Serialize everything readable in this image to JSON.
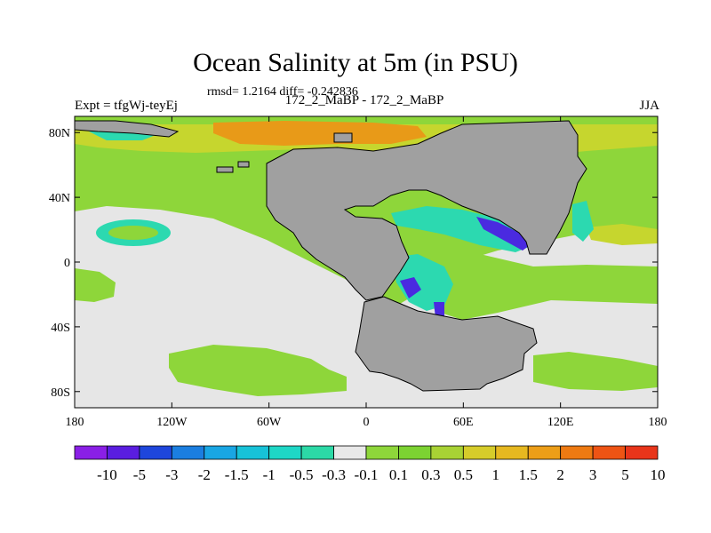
{
  "title": "Ocean Salinity at 5m (in PSU)",
  "stats": "rmsd= 1.2164 diff= -0.242836",
  "experiment": "Expt = tfgWj-teyEj",
  "run": "172_2_MaBP - 172_2_MaBP",
  "season": "JJA",
  "lat_ticks": [
    {
      "value": 80,
      "label": "80N"
    },
    {
      "value": 40,
      "label": "40N"
    },
    {
      "value": 0,
      "label": "0"
    },
    {
      "value": -40,
      "label": "40S"
    },
    {
      "value": -80,
      "label": "80S"
    }
  ],
  "lon_ticks": [
    {
      "value": -180,
      "label": "180"
    },
    {
      "value": -120,
      "label": "120W"
    },
    {
      "value": -60,
      "label": "60W"
    },
    {
      "value": 0,
      "label": "0"
    },
    {
      "value": 60,
      "label": "60E"
    },
    {
      "value": 120,
      "label": "120E"
    },
    {
      "value": 180,
      "label": "180"
    }
  ],
  "colorbar": {
    "colors": [
      "#8a1fe6",
      "#5a1de0",
      "#1e46dc",
      "#1b7ee0",
      "#19a6e4",
      "#17c2d8",
      "#1ed7c6",
      "#2cd9a6",
      "#e8e8e8",
      "#8ed63a",
      "#7cd232",
      "#a8d234",
      "#d6cc2a",
      "#e6b820",
      "#ec9e18",
      "#ee7a12",
      "#ee5414",
      "#e8351a"
    ],
    "labels": [
      "-10",
      "-5",
      "-3",
      "-2",
      "-1.5",
      "-1",
      "-0.5",
      "-0.3",
      "-0.1",
      "0.1",
      "0.3",
      "0.5",
      "1",
      "1.5",
      "2",
      "3",
      "5",
      "10"
    ]
  },
  "map_colors": {
    "land": "#a0a0a0",
    "neutral": "#e6e6e6",
    "positive_low": "#8ed63a",
    "positive_mid": "#c6d62e",
    "positive_high": "#e89a18",
    "negative_low": "#2cd9b0",
    "negative_high": "#4a2ae0"
  }
}
